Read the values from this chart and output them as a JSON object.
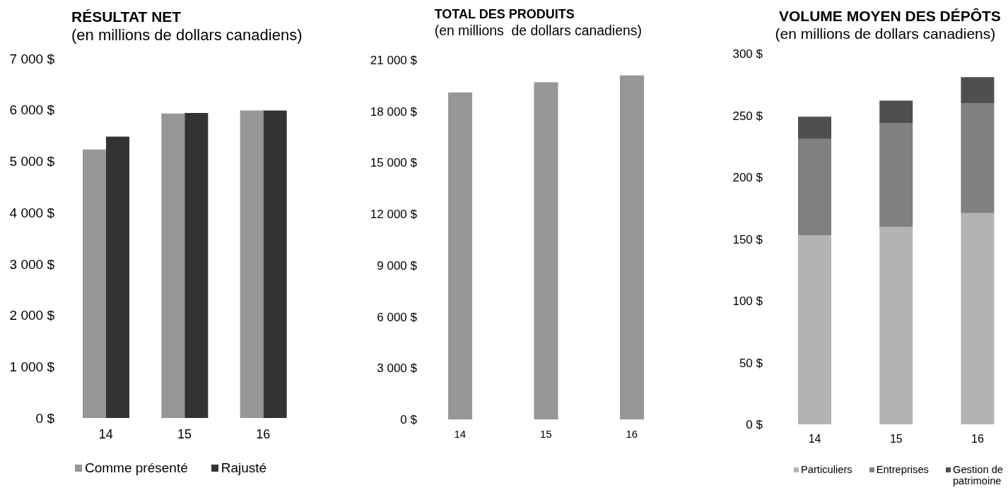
{
  "chart_data": [
    {
      "type": "bar",
      "title": "RÉSULTAT NET",
      "subtitle": "(en millions de dollars canadiens)",
      "categories": [
        "14",
        "15",
        "16"
      ],
      "series": [
        {
          "name": "Comme présenté",
          "color": "#969696",
          "values": [
            5230,
            5930,
            5990
          ]
        },
        {
          "name": "Rajusté",
          "color": "#333333",
          "values": [
            5480,
            5940,
            5990
          ]
        }
      ],
      "ylim": [
        0,
        7000
      ],
      "yticks": [
        {
          "value": 0,
          "label": "0 $"
        },
        {
          "value": 1000,
          "label": "1 000 $"
        },
        {
          "value": 2000,
          "label": "2 000 $"
        },
        {
          "value": 3000,
          "label": "3 000 $"
        },
        {
          "value": 4000,
          "label": "4 000 $"
        },
        {
          "value": 5000,
          "label": "5 000 $"
        },
        {
          "value": 6000,
          "label": "6 000 $"
        },
        {
          "value": 7000,
          "label": "7 000 $"
        }
      ],
      "legend": "bottom"
    },
    {
      "type": "bar",
      "title": "TOTAL DES PRODUITS",
      "subtitle": "(en millions  de dollars canadiens)",
      "categories": [
        "14",
        "15",
        "16"
      ],
      "values": [
        19100,
        19700,
        20100
      ],
      "color": "#969696",
      "ylim": [
        0,
        21000
      ],
      "yticks": [
        {
          "value": 0,
          "label": "0 $"
        },
        {
          "value": 3000,
          "label": "3 000 $"
        },
        {
          "value": 6000,
          "label": "6 000 $"
        },
        {
          "value": 9000,
          "label": "9 000 $"
        },
        {
          "value": 12000,
          "label": "12 000 $"
        },
        {
          "value": 15000,
          "label": "15 000 $"
        },
        {
          "value": 18000,
          "label": "18 000 $"
        },
        {
          "value": 21000,
          "label": "21 000 $"
        }
      ]
    },
    {
      "type": "bar",
      "title": "VOLUME MOYEN DES DÉPÔTS",
      "subtitle": "(en millions de dollars canadiens)",
      "categories": [
        "14",
        "15",
        "16"
      ],
      "stacked": true,
      "series": [
        {
          "name": "Particuliers",
          "color": "#b3b3b3",
          "values": [
            153,
            160,
            171
          ]
        },
        {
          "name": "Entreprises",
          "color": "#808080",
          "values": [
            78,
            84,
            89
          ]
        },
        {
          "name": "Gestion de patrimoine",
          "color": "#4f4f4f",
          "values": [
            18,
            18,
            21
          ]
        }
      ],
      "ylim": [
        0,
        300
      ],
      "yticks": [
        {
          "value": 0,
          "label": "0 $"
        },
        {
          "value": 50,
          "label": "50 $"
        },
        {
          "value": 100,
          "label": "100 $"
        },
        {
          "value": 150,
          "label": "150 $"
        },
        {
          "value": 200,
          "label": "200 $"
        },
        {
          "value": 250,
          "label": "250 $"
        },
        {
          "value": 300,
          "label": "300 $"
        }
      ],
      "legend": "bottom"
    }
  ]
}
